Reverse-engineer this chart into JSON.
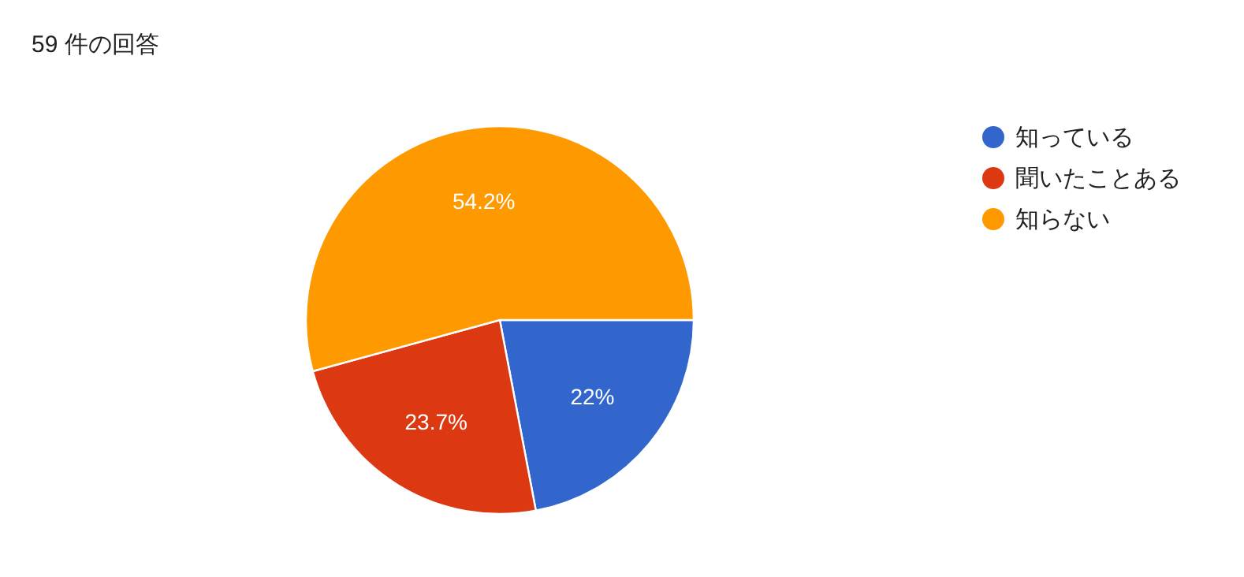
{
  "chart_data": {
    "type": "pie",
    "title": "59 件の回答",
    "categories": [
      "知っている",
      "聞いたことある",
      "知らない"
    ],
    "values": [
      22,
      23.7,
      54.2
    ],
    "colors": [
      "#3366cc",
      "#dc3912",
      "#ff9900"
    ],
    "value_labels": [
      "22%",
      "23.7%",
      "54.2%"
    ],
    "legend": "right"
  }
}
